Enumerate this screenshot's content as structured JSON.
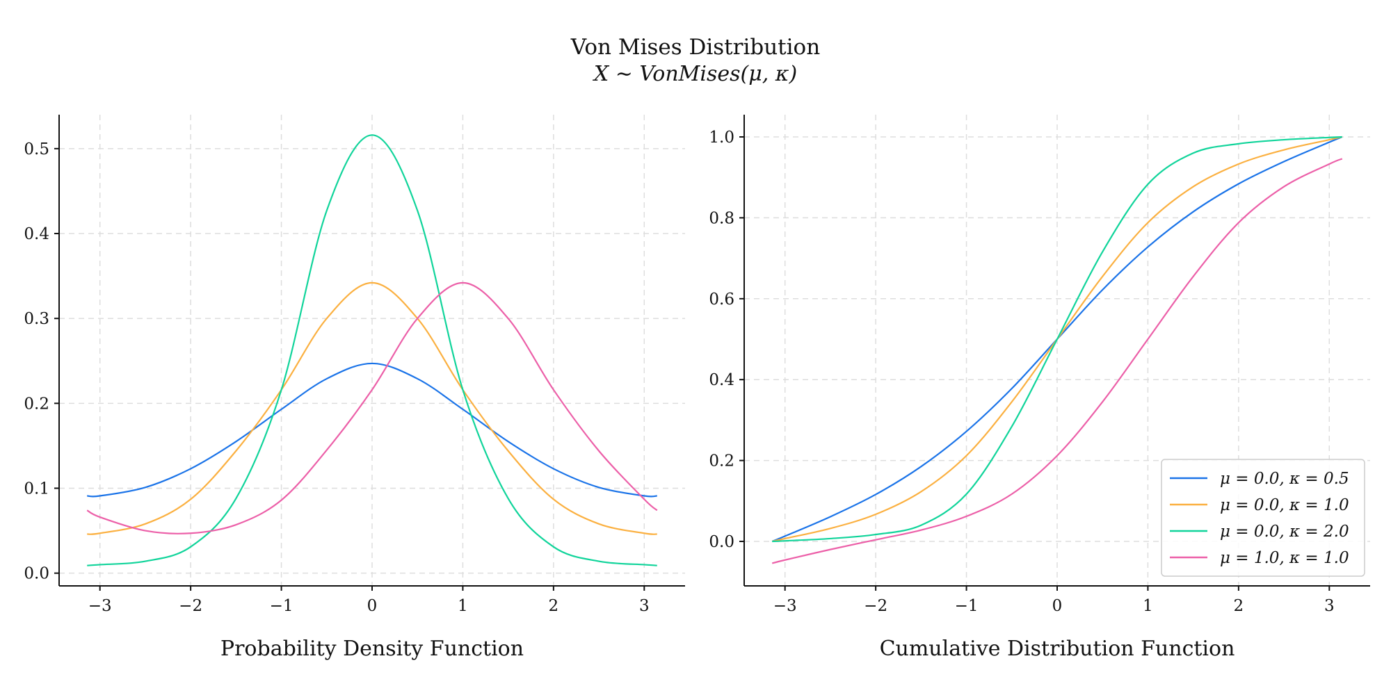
{
  "figure": {
    "title": "Von Mises Distribution",
    "subtitle": "X ∼ VonMises(μ, κ)"
  },
  "colors": {
    "mu0_k05": "#1a73e8",
    "mu0_k1": "#fbb040",
    "mu0_k2": "#10d49a",
    "mu1_k1": "#ec5fa8"
  },
  "chart_data": [
    {
      "type": "line",
      "title": "Probability Density Function",
      "xlabel": "Probability Density Function",
      "ylabel": "",
      "xlim": [
        -3.45,
        3.45
      ],
      "ylim": [
        -0.015,
        0.54
      ],
      "xticks": [
        -3,
        -2,
        -1,
        0,
        1,
        2,
        3
      ],
      "xtick_labels": [
        "−3",
        "−2",
        "−1",
        "0",
        "1",
        "2",
        "3"
      ],
      "yticks": [
        0.0,
        0.1,
        0.2,
        0.3,
        0.4,
        0.5
      ],
      "ytick_labels": [
        "0.0",
        "0.1",
        "0.2",
        "0.3",
        "0.4",
        "0.5"
      ],
      "grid": true,
      "x": [
        -3.1416,
        -3,
        -2.5,
        -2,
        -1.5,
        -1,
        -0.5,
        0,
        0.5,
        1,
        1.5,
        2,
        2.5,
        3,
        3.1416
      ],
      "series": [
        {
          "name": "μ = 0.0, κ = 0.5",
          "color_key": "mu0_k05",
          "values": [
            0.091,
            0.091,
            0.101,
            0.123,
            0.155,
            0.193,
            0.229,
            0.247,
            0.229,
            0.193,
            0.155,
            0.123,
            0.101,
            0.091,
            0.091
          ]
        },
        {
          "name": "μ = 0.0, κ = 1.0",
          "color_key": "mu0_k1",
          "values": [
            0.046,
            0.047,
            0.058,
            0.087,
            0.144,
            0.216,
            0.3,
            0.342,
            0.3,
            0.216,
            0.144,
            0.087,
            0.058,
            0.047,
            0.046
          ]
        },
        {
          "name": "μ = 0.0, κ = 2.0",
          "color_key": "mu0_k2",
          "values": [
            0.009,
            0.01,
            0.014,
            0.031,
            0.088,
            0.216,
            0.427,
            0.516,
            0.427,
            0.216,
            0.088,
            0.031,
            0.014,
            0.01,
            0.009
          ]
        },
        {
          "name": "μ = 1.0, κ = 1.0",
          "color_key": "mu1_k1",
          "values": [
            0.074,
            0.066,
            0.05,
            0.047,
            0.057,
            0.086,
            0.145,
            0.216,
            0.3,
            0.342,
            0.3,
            0.216,
            0.144,
            0.087,
            0.074
          ]
        }
      ]
    },
    {
      "type": "line",
      "title": "Cumulative Distribution Function",
      "xlabel": "Cumulative Distribution Function",
      "ylabel": "",
      "xlim": [
        -3.45,
        3.45
      ],
      "ylim": [
        -0.11,
        1.055
      ],
      "xticks": [
        -3,
        -2,
        -1,
        0,
        1,
        2,
        3
      ],
      "xtick_labels": [
        "−3",
        "−2",
        "−1",
        "0",
        "1",
        "2",
        "3"
      ],
      "yticks": [
        0.0,
        0.2,
        0.4,
        0.6,
        0.8,
        1.0
      ],
      "ytick_labels": [
        "0.0",
        "0.2",
        "0.4",
        "0.6",
        "0.8",
        "1.0"
      ],
      "grid": true,
      "legend_position": "lower-right",
      "x": [
        -3.1416,
        -3,
        -2.5,
        -2,
        -1.5,
        -1,
        -0.5,
        0,
        0.5,
        1,
        1.5,
        2,
        2.5,
        3,
        3.1416
      ],
      "series": [
        {
          "name": "μ = 0.0, κ = 0.5",
          "color_key": "mu0_k05",
          "values": [
            0.0,
            0.013,
            0.061,
            0.116,
            0.185,
            0.272,
            0.378,
            0.5,
            0.622,
            0.728,
            0.815,
            0.884,
            0.939,
            0.987,
            1.0
          ]
        },
        {
          "name": "μ = 0.0, κ = 1.0",
          "color_key": "mu0_k1",
          "values": [
            0.0,
            0.007,
            0.032,
            0.067,
            0.123,
            0.212,
            0.345,
            0.5,
            0.655,
            0.788,
            0.877,
            0.933,
            0.968,
            0.993,
            1.0
          ]
        },
        {
          "name": "μ = 0.0, κ = 2.0",
          "color_key": "mu0_k2",
          "values": [
            0.0,
            0.0014,
            0.007,
            0.017,
            0.04,
            0.117,
            0.284,
            0.5,
            0.716,
            0.883,
            0.96,
            0.983,
            0.993,
            0.9986,
            1.0
          ]
        },
        {
          "name": "μ = 1.0, κ = 1.0",
          "color_key": "mu1_k1",
          "values": [
            -0.054,
            -0.046,
            -0.02,
            0.004,
            0.028,
            0.062,
            0.117,
            0.212,
            0.345,
            0.5,
            0.655,
            0.788,
            0.877,
            0.933,
            0.946
          ]
        }
      ]
    }
  ]
}
